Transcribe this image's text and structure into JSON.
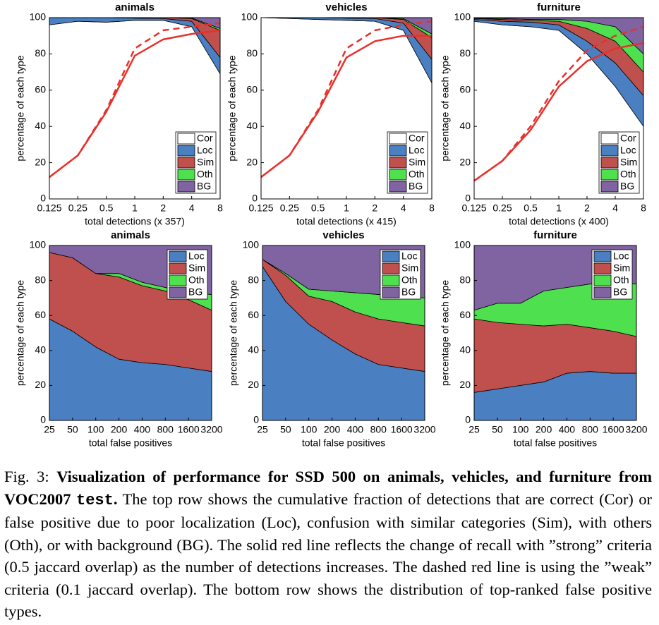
{
  "chart_data": [
    {
      "type": "stacked-area",
      "title": "animals",
      "xlabel": "total detections (x 357)",
      "ylabel": "percentage of each type",
      "categories": [
        "0.125",
        "0.25",
        "0.5",
        "1",
        "2",
        "4",
        "8"
      ],
      "ylim": [
        0,
        100
      ],
      "yticks": [
        0,
        20,
        40,
        60,
        80,
        100
      ],
      "legend": "lower right",
      "series": [
        {
          "name": "Cor",
          "color": "#ffffff",
          "values": [
            96,
            98,
            97.5,
            98.5,
            98.5,
            95,
            69
          ]
        },
        {
          "name": "Loc",
          "color": "#4a7fc1",
          "values": [
            4,
            2,
            2.5,
            1.2,
            1,
            3,
            9
          ]
        },
        {
          "name": "Sim",
          "color": "#c0504d",
          "values": [
            0,
            0,
            0,
            0.3,
            0.5,
            1.5,
            15
          ]
        },
        {
          "name": "Oth",
          "color": "#4fe04f",
          "values": [
            0,
            0,
            0,
            0,
            0,
            0.3,
            1
          ]
        },
        {
          "name": "BG",
          "color": "#8064a2",
          "values": [
            0,
            0,
            0,
            0,
            0,
            0.2,
            6
          ]
        }
      ],
      "lines": [
        {
          "color": "#e8302a",
          "dashed": false,
          "values": [
            12,
            24,
            48,
            79,
            88,
            91,
            93
          ]
        },
        {
          "color": "#e8302a",
          "dashed": true,
          "values": [
            12,
            24,
            49,
            83,
            93,
            95,
            97
          ]
        }
      ]
    },
    {
      "type": "stacked-area",
      "title": "vehicles",
      "xlabel": "total detections (x 415)",
      "ylabel": "percentage of each type",
      "categories": [
        "0.125",
        "0.25",
        "0.5",
        "1",
        "2",
        "4",
        "8"
      ],
      "ylim": [
        0,
        100
      ],
      "yticks": [
        0,
        20,
        40,
        60,
        80,
        100
      ],
      "legend": "lower right",
      "series": [
        {
          "name": "Cor",
          "color": "#ffffff",
          "values": [
            100,
            99.5,
            99,
            98.5,
            98,
            93,
            64
          ]
        },
        {
          "name": "Loc",
          "color": "#4a7fc1",
          "values": [
            0,
            0.5,
            1,
            1.2,
            1.5,
            4,
            13
          ]
        },
        {
          "name": "Sim",
          "color": "#c0504d",
          "values": [
            0,
            0,
            0,
            0.3,
            0.5,
            2,
            12
          ]
        },
        {
          "name": "Oth",
          "color": "#4fe04f",
          "values": [
            0,
            0,
            0,
            0,
            0,
            0.5,
            2
          ]
        },
        {
          "name": "BG",
          "color": "#8064a2",
          "values": [
            0,
            0,
            0,
            0,
            0,
            0.5,
            9
          ]
        }
      ],
      "lines": [
        {
          "color": "#e8302a",
          "dashed": false,
          "values": [
            12,
            24,
            48,
            78,
            87,
            90,
            90
          ]
        },
        {
          "color": "#e8302a",
          "dashed": true,
          "values": [
            12,
            24,
            49,
            83,
            93,
            96,
            98
          ]
        }
      ]
    },
    {
      "type": "stacked-area",
      "title": "furniture",
      "xlabel": "total detections (x 400)",
      "ylabel": "percentage of each type",
      "categories": [
        "0.125",
        "0.25",
        "0.5",
        "1",
        "2",
        "4",
        "8"
      ],
      "ylim": [
        0,
        100
      ],
      "yticks": [
        0,
        20,
        40,
        60,
        80,
        100
      ],
      "legend": "lower right",
      "series": [
        {
          "name": "Cor",
          "color": "#ffffff",
          "values": [
            98,
            96,
            95,
            93,
            80,
            62,
            40
          ]
        },
        {
          "name": "Loc",
          "color": "#4a7fc1",
          "values": [
            1,
            2,
            2.5,
            3,
            7,
            13,
            17
          ]
        },
        {
          "name": "Sim",
          "color": "#c0504d",
          "values": [
            0.5,
            1,
            1,
            2,
            7,
            12,
            13
          ]
        },
        {
          "name": "Oth",
          "color": "#4fe04f",
          "values": [
            0,
            0.5,
            0.5,
            1,
            4,
            8,
            10
          ]
        },
        {
          "name": "BG",
          "color": "#8064a2",
          "values": [
            0.5,
            0.5,
            1,
            1,
            2,
            5,
            20
          ]
        }
      ],
      "lines": [
        {
          "color": "#e8302a",
          "dashed": false,
          "values": [
            10,
            21,
            38,
            62,
            76,
            83,
            86
          ]
        },
        {
          "color": "#e8302a",
          "dashed": true,
          "values": [
            10,
            21,
            40,
            65,
            82,
            90,
            95
          ]
        }
      ]
    },
    {
      "type": "stacked-area",
      "title": "animals",
      "xlabel": "total false positives",
      "ylabel": "percentage of each type",
      "categories": [
        "25",
        "50",
        "100",
        "200",
        "400",
        "800",
        "1600",
        "3200"
      ],
      "ylim": [
        0,
        100
      ],
      "yticks": [
        0,
        20,
        40,
        60,
        80,
        100
      ],
      "legend": "upper right",
      "series": [
        {
          "name": "Loc",
          "color": "#4a7fc1",
          "values": [
            58,
            51,
            42,
            35,
            33,
            32,
            30,
            28
          ]
        },
        {
          "name": "Sim",
          "color": "#c0504d",
          "values": [
            38,
            42,
            42,
            47,
            44,
            42,
            39,
            35
          ]
        },
        {
          "name": "Oth",
          "color": "#4fe04f",
          "values": [
            0,
            0,
            0,
            2,
            2,
            2,
            4,
            9
          ]
        },
        {
          "name": "BG",
          "color": "#8064a2",
          "values": [
            4,
            7,
            16,
            16,
            21,
            24,
            27,
            28
          ]
        }
      ]
    },
    {
      "type": "stacked-area",
      "title": "vehicles",
      "xlabel": "total false positives",
      "ylabel": "percentage of each type",
      "categories": [
        "25",
        "50",
        "100",
        "200",
        "400",
        "800",
        "1600",
        "3200"
      ],
      "ylim": [
        0,
        100
      ],
      "yticks": [
        0,
        20,
        40,
        60,
        80,
        100
      ],
      "legend": "upper right",
      "series": [
        {
          "name": "Loc",
          "color": "#4a7fc1",
          "values": [
            88,
            68,
            55,
            46,
            38,
            32,
            30,
            28
          ]
        },
        {
          "name": "Sim",
          "color": "#c0504d",
          "values": [
            4,
            15,
            16,
            22,
            24,
            26,
            26,
            26
          ]
        },
        {
          "name": "Oth",
          "color": "#4fe04f",
          "values": [
            0,
            1,
            4,
            6,
            11,
            14,
            15,
            16
          ]
        },
        {
          "name": "BG",
          "color": "#8064a2",
          "values": [
            8,
            16,
            25,
            26,
            27,
            28,
            29,
            30
          ]
        }
      ]
    },
    {
      "type": "stacked-area",
      "title": "furniture",
      "xlabel": "total false positives",
      "ylabel": "percentage of each type",
      "categories": [
        "25",
        "50",
        "100",
        "200",
        "400",
        "800",
        "1600",
        "3200"
      ],
      "ylim": [
        0,
        100
      ],
      "yticks": [
        0,
        20,
        40,
        60,
        80,
        100
      ],
      "legend": "upper right",
      "series": [
        {
          "name": "Loc",
          "color": "#4a7fc1",
          "values": [
            16,
            18,
            20,
            22,
            27,
            28,
            27,
            27
          ]
        },
        {
          "name": "Sim",
          "color": "#c0504d",
          "values": [
            42,
            38,
            35,
            32,
            28,
            25,
            24,
            21
          ]
        },
        {
          "name": "Oth",
          "color": "#4fe04f",
          "values": [
            5,
            11,
            12,
            20,
            21,
            25,
            27,
            30
          ]
        },
        {
          "name": "BG",
          "color": "#8064a2",
          "values": [
            37,
            33,
            33,
            26,
            24,
            22,
            22,
            22
          ]
        }
      ]
    }
  ],
  "caption": {
    "label": "Fig. 3:",
    "bold": "Visualization of performance for SSD 500 on animals, vehicles, and furniture from VOC2007",
    "code": "test",
    "bold_end": ".",
    "text": "The top row shows the cumulative fraction of detections that are correct (Cor) or false positive due to poor localization (Loc), confusion with similar categories (Sim), with others (Oth), or with background (BG). The solid red line reflects the change of recall with ”strong” criteria (0.5 jaccard overlap) as the number of detections increases. The dashed red line is using the ”weak” criteria (0.1 jaccard overlap). The bottom row shows the distribution of top-ranked false positive types."
  }
}
